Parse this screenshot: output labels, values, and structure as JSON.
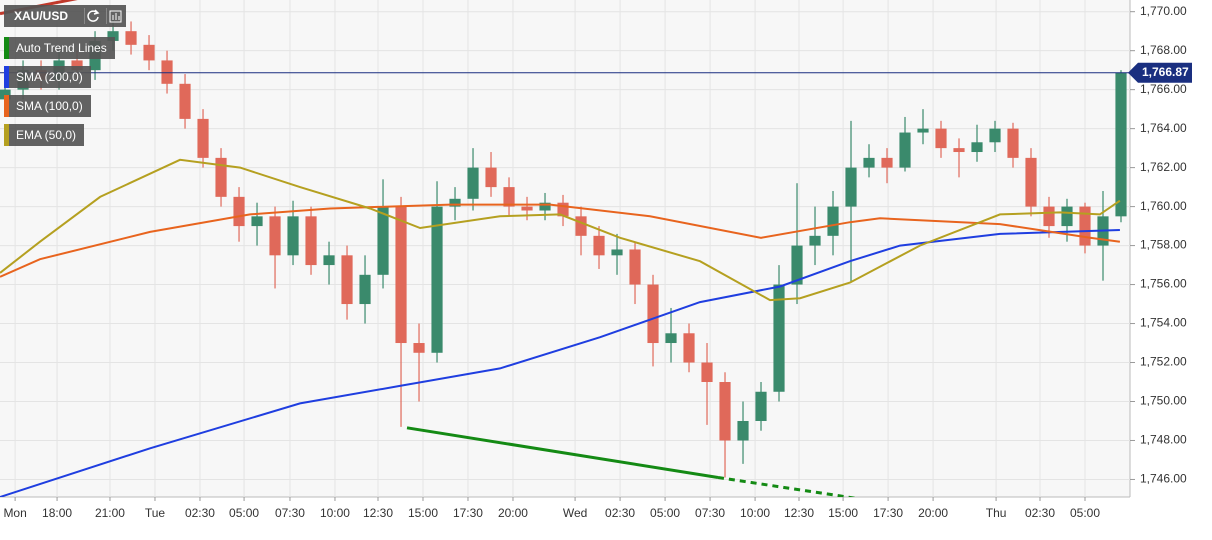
{
  "chart_data": {
    "type": "candlestick",
    "title": "XAU/USD",
    "up_color": "#3a8a6c",
    "down_color": "#e0695a",
    "x": [
      0,
      1,
      2,
      3,
      4,
      5,
      6,
      7,
      8,
      9,
      10,
      11,
      12,
      13,
      14,
      15,
      16,
      17,
      18,
      19,
      20,
      21,
      22,
      23,
      24,
      25,
      26,
      27,
      28,
      29,
      30,
      31,
      32,
      33,
      34,
      35,
      36,
      37,
      38,
      39,
      40,
      41,
      42,
      43,
      44,
      45,
      46,
      47,
      48,
      49,
      50,
      51,
      52,
      53,
      54,
      55,
      56,
      57,
      58,
      59,
      60,
      61,
      62
    ],
    "open": [
      1765.5,
      1766,
      1767,
      1766.5,
      1767.5,
      1767,
      1768.5,
      1769,
      1768.3,
      1767.5,
      1766.3,
      1764.5,
      1762.5,
      1760.5,
      1759,
      1759.5,
      1757.5,
      1759.5,
      1757,
      1757.5,
      1755,
      1756.5,
      1760,
      1753,
      1752.5,
      1760,
      1760.4,
      1762,
      1761,
      1760,
      1759.8,
      1760.2,
      1759.5,
      1758.5,
      1757.5,
      1757.8,
      1756,
      1753,
      1753.5,
      1752,
      1751,
      1748,
      1749,
      1750.5,
      1756,
      1758,
      1758.5,
      1760,
      1762,
      1762.5,
      1762,
      1763.8,
      1764,
      1763,
      1762.8,
      1763.3,
      1764,
      1762.5,
      1760,
      1759,
      1760,
      1758,
      1759.5
    ],
    "high": [
      1766.5,
      1767.5,
      1767.5,
      1768,
      1768,
      1769,
      1769.6,
      1769.5,
      1768.8,
      1768,
      1766.8,
      1765,
      1763,
      1761,
      1760.2,
      1760,
      1760.3,
      1760,
      1758.2,
      1758,
      1757.5,
      1761.4,
      1760.5,
      1754,
      1761.3,
      1761,
      1763,
      1762.8,
      1761.5,
      1760.5,
      1760.7,
      1760.6,
      1760,
      1759,
      1758.6,
      1758.2,
      1756.5,
      1754.8,
      1754,
      1753,
      1751.5,
      1750,
      1751,
      1757,
      1761.2,
      1760,
      1760.8,
      1764.4,
      1763.2,
      1763,
      1764.6,
      1765,
      1764.4,
      1763.5,
      1764.2,
      1764.4,
      1764.3,
      1763,
      1760.5,
      1760.4,
      1760.2,
      1760.8,
      1767
    ],
    "low": [
      1765,
      1765.5,
      1766,
      1766,
      1766.5,
      1766.5,
      1768,
      1767.8,
      1767,
      1765.8,
      1764,
      1762,
      1760,
      1758.2,
      1758,
      1755.8,
      1757,
      1756.5,
      1756,
      1754.2,
      1754,
      1755.8,
      1748.7,
      1750,
      1752,
      1759.3,
      1759.8,
      1760.5,
      1759.5,
      1759.3,
      1759.3,
      1759,
      1757.5,
      1756.8,
      1756.5,
      1755,
      1751.8,
      1752,
      1751.5,
      1748.8,
      1746.1,
      1746.8,
      1748.5,
      1750,
      1755,
      1757,
      1757.5,
      1756.1,
      1761.5,
      1761.2,
      1761.8,
      1763.2,
      1762.5,
      1761.5,
      1762.3,
      1762.8,
      1762,
      1759.5,
      1758.4,
      1758.2,
      1757.6,
      1756.2,
      1759.2
    ],
    "close": [
      1766,
      1767,
      1766.5,
      1767.5,
      1767,
      1768.5,
      1769,
      1768.3,
      1767.5,
      1766.3,
      1764.5,
      1762.5,
      1760.5,
      1759,
      1759.5,
      1757.5,
      1759.5,
      1757,
      1757.5,
      1755,
      1756.5,
      1760,
      1753,
      1752.5,
      1760,
      1760.4,
      1762,
      1761,
      1760,
      1759.8,
      1760.2,
      1759.5,
      1758.5,
      1757.5,
      1757.8,
      1756,
      1753,
      1753.5,
      1752,
      1751,
      1748,
      1749,
      1750.5,
      1756,
      1758,
      1758.5,
      1760,
      1762,
      1762.5,
      1762,
      1763.8,
      1764,
      1763,
      1762.8,
      1763.3,
      1764,
      1762.5,
      1760,
      1759,
      1760,
      1758,
      1759.5,
      1766.87
    ],
    "trend_lines": {
      "name": "Auto Trend Lines",
      "color": "#148a14",
      "lines": [
        {
          "x": [
            -0.28,
            6.94
          ],
          "values": [
            1769.9,
            1771.2
          ],
          "color": "#c0392b",
          "dashed": false
        },
        {
          "x": [
            22.33,
            39.61
          ],
          "values": [
            1748.65,
            1746.1
          ],
          "color": "#148a14",
          "dashed": false
        },
        {
          "x": [
            39.61,
            47.5
          ],
          "values": [
            1746.1,
            1745.0
          ],
          "color": "#148a14",
          "dashed": true
        }
      ]
    },
    "series": [
      {
        "name": "SMA (200,0)",
        "color": "#1f3ee0",
        "x": [
          -0.28,
          8.06,
          16.39,
          21.94,
          27.5,
          33.06,
          38.61,
          43.06,
          46.94,
          49.72,
          55.28,
          61.94
        ],
        "values": [
          1745.1,
          1747.6,
          1749.9,
          1750.8,
          1751.7,
          1753.3,
          1755.1,
          1755.9,
          1757.2,
          1758.0,
          1758.6,
          1758.8
        ]
      },
      {
        "name": "SMA (100,0)",
        "color": "#e8641e",
        "x": [
          -0.28,
          1.94,
          8.06,
          13.61,
          18.06,
          24.72,
          30.28,
          35.83,
          42.0,
          46.94,
          48.61,
          55.28,
          60.28,
          61.94
        ],
        "values": [
          1756.4,
          1757.3,
          1758.7,
          1759.6,
          1759.9,
          1760.1,
          1760.1,
          1759.5,
          1758.4,
          1759.2,
          1759.4,
          1759.1,
          1758.4,
          1758.2
        ]
      },
      {
        "name": "EMA (50,0)",
        "color": "#b5a020",
        "x": [
          -0.28,
          1.94,
          5.28,
          9.72,
          13.06,
          16.39,
          20.28,
          23.06,
          27.5,
          30.83,
          34.17,
          38.61,
          42.5,
          44.17,
          46.94,
          50.83,
          55.28,
          58.61,
          60.83,
          61.94
        ],
        "values": [
          1756.6,
          1758.2,
          1760.5,
          1762.4,
          1762.0,
          1761.0,
          1759.9,
          1758.9,
          1759.5,
          1759.6,
          1758.4,
          1757.2,
          1755.2,
          1755.3,
          1756.1,
          1758.0,
          1759.6,
          1759.7,
          1759.6,
          1760.3
        ]
      }
    ],
    "last_price": {
      "value": 1766.87,
      "label": "1,766.87",
      "color": "#1a2f80"
    },
    "xlim": [
      -0.28,
      62.5
    ],
    "ylim": [
      1745.1,
      1770.6
    ],
    "grid": true,
    "xticks": [
      {
        "value": 0.56,
        "label": "Mon"
      },
      {
        "value": 2.89,
        "label": "18:00"
      },
      {
        "value": 5.83,
        "label": "21:00"
      },
      {
        "value": 8.33,
        "label": "Tue"
      },
      {
        "value": 10.83,
        "label": "02:30"
      },
      {
        "value": 13.28,
        "label": "05:00"
      },
      {
        "value": 15.83,
        "label": "07:30"
      },
      {
        "value": 18.33,
        "label": "10:00"
      },
      {
        "value": 20.72,
        "label": "12:30"
      },
      {
        "value": 23.22,
        "label": "15:00"
      },
      {
        "value": 25.72,
        "label": "17:30"
      },
      {
        "value": 28.22,
        "label": "20:00"
      },
      {
        "value": 31.67,
        "label": "Wed"
      },
      {
        "value": 34.17,
        "label": "02:30"
      },
      {
        "value": 36.67,
        "label": "05:00"
      },
      {
        "value": 39.17,
        "label": "07:30"
      },
      {
        "value": 41.67,
        "label": "10:00"
      },
      {
        "value": 44.11,
        "label": "12:30"
      },
      {
        "value": 46.56,
        "label": "15:00"
      },
      {
        "value": 49.06,
        "label": "17:30"
      },
      {
        "value": 51.56,
        "label": "20:00"
      },
      {
        "value": 55.06,
        "label": "Thu"
      },
      {
        "value": 57.5,
        "label": "02:30"
      },
      {
        "value": 60.0,
        "label": "05:00"
      }
    ],
    "yticks": [
      {
        "value": 1746,
        "label": "1,746.00"
      },
      {
        "value": 1748,
        "label": "1,748.00"
      },
      {
        "value": 1750,
        "label": "1,750.00"
      },
      {
        "value": 1752,
        "label": "1,752.00"
      },
      {
        "value": 1754,
        "label": "1,754.00"
      },
      {
        "value": 1756,
        "label": "1,756.00"
      },
      {
        "value": 1758,
        "label": "1,758.00"
      },
      {
        "value": 1760,
        "label": "1,760.00"
      },
      {
        "value": 1762,
        "label": "1,762.00"
      },
      {
        "value": 1764,
        "label": "1,764.00"
      },
      {
        "value": 1766,
        "label": "1,766.00"
      },
      {
        "value": 1768,
        "label": "1,768.00"
      },
      {
        "value": 1770,
        "label": "1,770.00"
      }
    ]
  }
}
